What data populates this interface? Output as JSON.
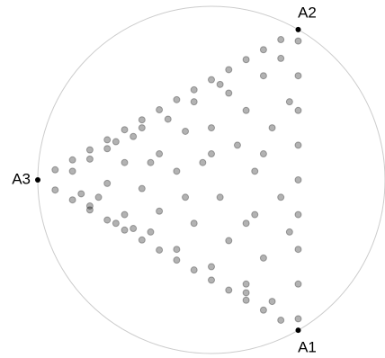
{
  "chart_data": {
    "type": "radviz",
    "anchors": [
      "A1",
      "A2",
      "A3"
    ],
    "color": "#000000",
    "alpha": 0.3,
    "xlim": [
      -1,
      1
    ],
    "ylim": [
      -1,
      1
    ],
    "x": [
      -0.9,
      -0.8,
      -0.7,
      -0.6,
      -0.5,
      -0.4,
      -0.3,
      -0.2,
      -0.1,
      0,
      0.1,
      0.2,
      0.3,
      0.4,
      -0.9,
      -0.8,
      -0.7,
      -0.6,
      -0.5,
      -0.4,
      -0.3,
      -0.2,
      -0.1,
      0,
      0.1,
      0.2,
      0.3,
      0.4,
      0.5,
      0.5,
      0.5,
      0.5,
      0.5,
      0.5,
      0.5,
      0.5,
      0.5,
      -0.8,
      -0.75,
      -0.7,
      -0.65,
      -0.6,
      -0.6,
      -0.55,
      -0.5,
      -0.5,
      -0.45,
      -0.4,
      -0.4,
      -0.35,
      -0.3,
      -0.3,
      -0.25,
      -0.2,
      -0.2,
      -0.15,
      -0.1,
      -0.1,
      -0.05,
      0,
      0,
      0.05,
      0.1,
      0.1,
      0.15,
      0.2,
      0.2,
      0.25,
      0.25,
      0.3,
      0.3,
      0.35,
      0.35,
      0.4,
      0.4,
      0.45,
      0.45,
      -0.7,
      -0.55,
      -0.35,
      -0.15,
      0.05,
      0.2,
      0.3,
      -0.45,
      0,
      0.2
    ],
    "y": [
      0.058,
      0.115,
      0.173,
      0.231,
      0.289,
      0.346,
      0.404,
      0.462,
      0.519,
      0.577,
      0.635,
      0.693,
      0.75,
      0.808,
      -0.058,
      -0.115,
      -0.173,
      -0.231,
      -0.289,
      -0.346,
      -0.404,
      -0.462,
      -0.519,
      -0.577,
      -0.635,
      -0.693,
      -0.75,
      -0.808,
      -0.8,
      -0.6,
      -0.4,
      -0.2,
      0,
      0.2,
      0.4,
      0.6,
      0.8,
      0.05,
      -0.08,
      0.12,
      -0.1,
      0.18,
      -0.02,
      0.22,
      -0.2,
      0.1,
      0.25,
      -0.05,
      0.3,
      -0.3,
      0.15,
      -0.18,
      0.35,
      -0.4,
      0.05,
      0.28,
      -0.25,
      0.45,
      0.1,
      -0.5,
      0.3,
      -0.1,
      0.5,
      -0.35,
      0.2,
      -0.6,
      0.4,
      -0.2,
      0.05,
      0.6,
      -0.45,
      0.3,
      -0.7,
      -0.1,
      0.7,
      0.45,
      -0.3,
      -0.15,
      -0.25,
      0.1,
      -0.1,
      0.55,
      -0.65,
      0.15,
      -0.28,
      0.15,
      -0.25
    ]
  }
}
